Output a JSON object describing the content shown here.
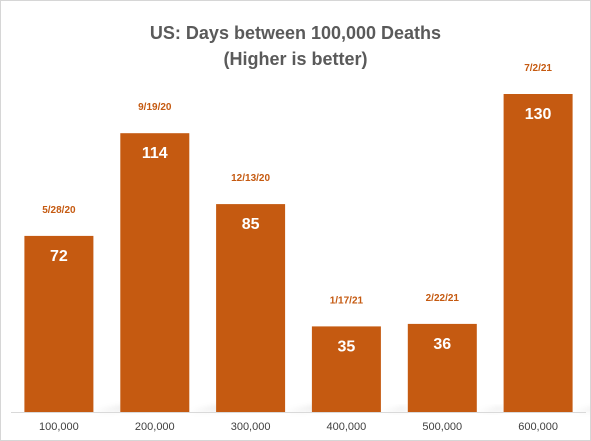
{
  "chart_data": {
    "type": "bar",
    "title": "US: Days between 100,000 Deaths",
    "subtitle": "(Higher is better)",
    "categories": [
      "100,000",
      "200,000",
      "300,000",
      "400,000",
      "500,000",
      "600,000"
    ],
    "values": [
      72,
      114,
      85,
      35,
      36,
      130
    ],
    "annotations": [
      "5/28/20",
      "9/19/20",
      "12/13/20",
      "1/17/21",
      "2/22/21",
      "7/2/21"
    ],
    "xlabel": "",
    "ylabel": "",
    "ylim": [
      0,
      155
    ],
    "grid": false,
    "legend": "none",
    "colors": {
      "bar": "#c55a11",
      "annotation": "#c55a11",
      "value_label": "#ffffff",
      "title": "#5a5a5a",
      "axis": "#d9d9d9"
    }
  }
}
